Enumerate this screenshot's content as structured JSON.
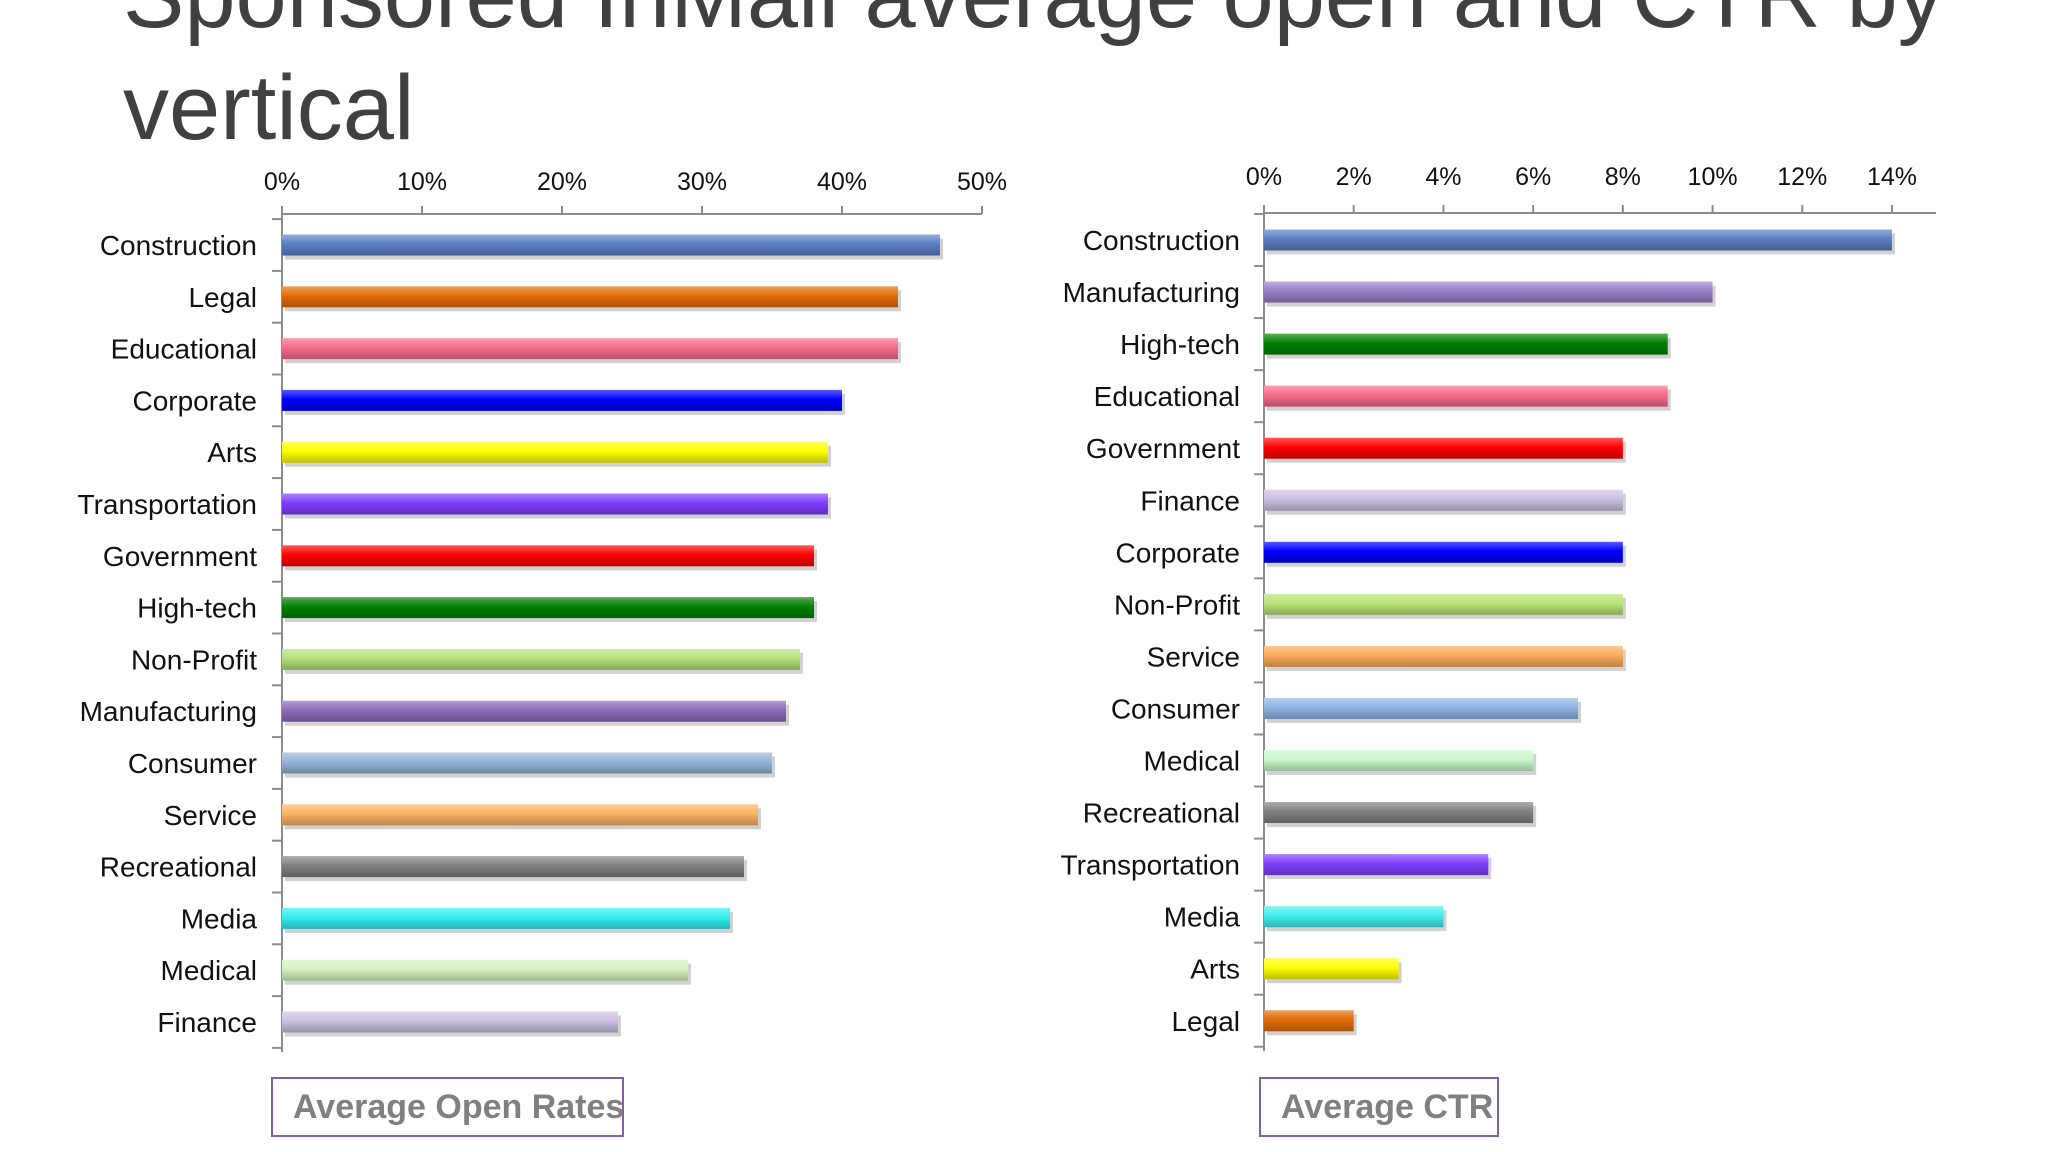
{
  "slide": {
    "title": "Sponsored InMail average open and CTR by vertical"
  },
  "legends": {
    "left": "Average Open Rates",
    "right": "Average CTR"
  },
  "chart_data": [
    {
      "type": "bar",
      "orientation": "horizontal",
      "title": "",
      "series_name": "Average Open Rates",
      "xlim": [
        0,
        50
      ],
      "x_ticks": [
        "0%",
        "10%",
        "20%",
        "30%",
        "40%",
        "50%"
      ],
      "categories": [
        "Construction",
        "Legal",
        "Educational",
        "Corporate",
        "Arts",
        "Transportation",
        "Government",
        "High-tech",
        "Non-Profit",
        "Manufacturing",
        "Consumer",
        "Service",
        "Recreational",
        "Media",
        "Medical",
        "Finance"
      ],
      "values": [
        47,
        44,
        44,
        40,
        39,
        39,
        38,
        38,
        37,
        36,
        35,
        34,
        33,
        32,
        29,
        24
      ],
      "colors": [
        "#5b7fc4",
        "#e36c09",
        "#f76b8a",
        "#0000ff",
        "#ffff00",
        "#7f3fff",
        "#ff0000",
        "#008000",
        "#b3e07a",
        "#8a6cb8",
        "#95b3d7",
        "#fab363",
        "#808080",
        "#33eeee",
        "#d6f2c0",
        "#ccc0e0"
      ],
      "grid": false,
      "legend": "bottom"
    },
    {
      "type": "bar",
      "orientation": "horizontal",
      "title": "",
      "series_name": "Average CTR",
      "xlim": [
        0,
        14
      ],
      "x_ticks": [
        "0%",
        "2%",
        "4%",
        "6%",
        "8%",
        "10%",
        "12%",
        "14%"
      ],
      "categories": [
        "Construction",
        "Manufacturing",
        "High-tech",
        "Educational",
        "Government",
        "Finance",
        "Corporate",
        "Non-Profit",
        "Service",
        "Consumer",
        "Medical",
        "Recreational",
        "Transportation",
        "Media",
        "Arts",
        "Legal"
      ],
      "values": [
        14,
        10,
        9,
        9,
        8,
        8,
        8,
        8,
        8,
        7,
        6,
        6,
        5,
        4,
        3,
        2
      ],
      "colors": [
        "#5b7fc4",
        "#9b7fc8",
        "#008000",
        "#f76b8a",
        "#ff0000",
        "#ccc0e0",
        "#0000ff",
        "#b8e378",
        "#fbaa5a",
        "#8eb4e3",
        "#ccf8cc",
        "#808080",
        "#7f3fff",
        "#44eeee",
        "#ffff00",
        "#e36c09"
      ],
      "grid": false,
      "legend": "bottom"
    }
  ]
}
